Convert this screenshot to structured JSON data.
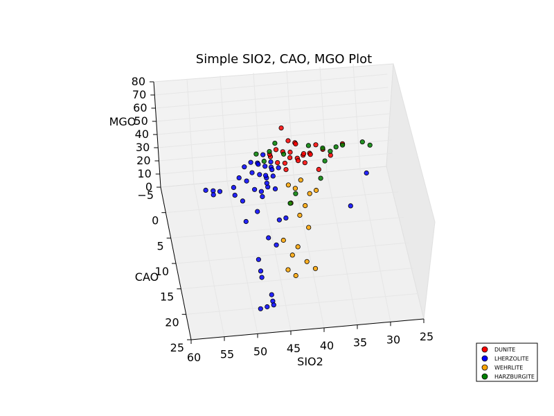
{
  "chart_data": {
    "type": "scatter",
    "projection": "3d",
    "title": "Simple SIO2, CAO, MGO Plot",
    "xlabel": "SIO2",
    "ylabel": "CAO",
    "zlabel": "MGO",
    "x_ticks": [
      "60",
      "55",
      "50",
      "45",
      "40",
      "35",
      "30",
      "25"
    ],
    "y_ticks": [
      "25",
      "20",
      "15",
      "10",
      "5",
      "0",
      "−5"
    ],
    "z_ticks": [
      "0",
      "10",
      "20",
      "30",
      "40",
      "50",
      "60",
      "70",
      "80"
    ],
    "xlim": [
      25,
      60
    ],
    "ylim": [
      -5,
      25
    ],
    "zlim": [
      0,
      80
    ],
    "grid": true,
    "legend_position": "bottom-right",
    "series": [
      {
        "name": "DUNITE",
        "color": "#ff0000",
        "points": [
          [
            41,
            2,
            45
          ],
          [
            42,
            1,
            42
          ],
          [
            40,
            2,
            40
          ],
          [
            43,
            1,
            44
          ],
          [
            39,
            1,
            38
          ],
          [
            42,
            3,
            41
          ],
          [
            44,
            2,
            43
          ],
          [
            38,
            1,
            39
          ],
          [
            41,
            0,
            46
          ],
          [
            40,
            3,
            42
          ],
          [
            37,
            1,
            45
          ],
          [
            43,
            2,
            38
          ],
          [
            42,
            1,
            60
          ],
          [
            35,
            2,
            40
          ],
          [
            39,
            2,
            43
          ],
          [
            41,
            1,
            37
          ],
          [
            44,
            1,
            41
          ],
          [
            40,
            0,
            44
          ],
          [
            38,
            2,
            42
          ],
          [
            36,
            1,
            41
          ],
          [
            33,
            1,
            44
          ],
          [
            42,
            4,
            40
          ],
          [
            40,
            1,
            47
          ],
          [
            39,
            3,
            40
          ],
          [
            37,
            3,
            34
          ]
        ]
      },
      {
        "name": "LHERZOLITE",
        "color": "#0000ff",
        "points": [
          [
            45,
            3,
            40
          ],
          [
            46,
            4,
            38
          ],
          [
            44,
            2,
            35
          ],
          [
            47,
            3,
            36
          ],
          [
            45,
            5,
            32
          ],
          [
            48,
            4,
            34
          ],
          [
            46,
            2,
            39
          ],
          [
            44,
            3,
            37
          ],
          [
            45,
            1,
            41
          ],
          [
            49,
            3,
            33
          ],
          [
            47,
            5,
            31
          ],
          [
            44,
            4,
            36
          ],
          [
            46,
            3,
            42
          ],
          [
            48,
            2,
            37
          ],
          [
            45,
            4,
            35
          ],
          [
            50,
            4,
            30
          ],
          [
            43,
            3,
            38
          ],
          [
            47,
            2,
            40
          ],
          [
            45,
            3,
            33
          ],
          [
            46,
            6,
            29
          ],
          [
            44,
            2,
            39
          ],
          [
            45,
            4,
            31
          ],
          [
            52,
            3,
            24
          ],
          [
            53,
            3,
            25
          ],
          [
            54,
            2,
            22
          ],
          [
            53,
            3,
            22
          ],
          [
            50,
            5,
            28
          ],
          [
            49,
            6,
            27
          ],
          [
            49,
            9,
            23
          ],
          [
            47,
            7,
            22
          ],
          [
            44,
            9,
            22
          ],
          [
            43,
            9,
            23
          ],
          [
            45,
            12,
            15
          ],
          [
            46,
            11,
            17
          ],
          [
            48,
            14,
            13
          ],
          [
            48,
            16,
            12
          ],
          [
            48,
            17,
            11
          ],
          [
            47,
            20,
            9
          ],
          [
            47,
            21,
            8
          ],
          [
            48,
            22,
            8
          ],
          [
            49,
            22,
            7
          ],
          [
            47,
            22,
            9
          ],
          [
            30,
            4,
            32
          ],
          [
            33,
            7,
            20
          ],
          [
            44,
            6,
            34
          ],
          [
            46,
            5,
            29
          ]
        ]
      },
      {
        "name": "WEHRLITE",
        "color": "#ffa500",
        "points": [
          [
            40,
            5,
            35
          ],
          [
            41,
            6,
            33
          ],
          [
            39,
            7,
            32
          ],
          [
            42,
            8,
            30
          ],
          [
            41,
            10,
            28
          ],
          [
            40,
            12,
            26
          ],
          [
            42,
            14,
            20
          ],
          [
            43,
            15,
            18
          ],
          [
            44,
            17,
            15
          ],
          [
            43,
            18,
            14
          ],
          [
            41,
            16,
            16
          ],
          [
            40,
            18,
            18
          ],
          [
            42,
            6,
            36
          ],
          [
            38,
            7,
            34
          ],
          [
            40,
            9,
            31
          ],
          [
            44,
            13,
            22
          ]
        ]
      },
      {
        "name": "HARZBURGITE",
        "color": "#008000",
        "points": [
          [
            44,
            1,
            43
          ],
          [
            43,
            0,
            45
          ],
          [
            45,
            2,
            40
          ],
          [
            42,
            2,
            44
          ],
          [
            46,
            1,
            42
          ],
          [
            38,
            0,
            41
          ],
          [
            36,
            1,
            42
          ],
          [
            35,
            2,
            43
          ],
          [
            34,
            1,
            42
          ],
          [
            33,
            1,
            43
          ],
          [
            30,
            1,
            44
          ],
          [
            29,
            2,
            45
          ],
          [
            37,
            5,
            35
          ],
          [
            41,
            6,
            29
          ],
          [
            42,
            7,
            26
          ],
          [
            36,
            3,
            40
          ]
        ]
      }
    ]
  }
}
